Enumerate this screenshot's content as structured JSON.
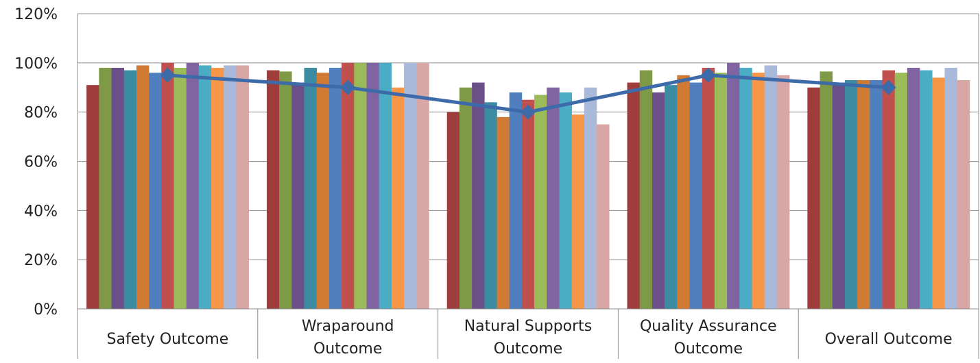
{
  "chart_data": {
    "type": "bar",
    "title": "",
    "xlabel": "",
    "ylabel": "",
    "ylim": [
      0,
      1.2
    ],
    "yticks": [
      "0%",
      "20%",
      "40%",
      "60%",
      "80%",
      "100%",
      "120%"
    ],
    "grid": true,
    "legend": "none",
    "categories": [
      [
        "Safety Outcome"
      ],
      [
        "Wraparound",
        "Outcome"
      ],
      [
        "Natural Supports",
        "Outcome"
      ],
      [
        "Quality Assurance",
        "Outcome"
      ],
      [
        "Overall Outcome"
      ]
    ],
    "bar_colors": [
      "#9E3D3B",
      "#7E9A47",
      "#6B4F88",
      "#3B8CA3",
      "#D07A33",
      "#4F7FBE",
      "#C0504D",
      "#9BBB59",
      "#8064A2",
      "#4BACC6",
      "#F79646",
      "#A9B9D9",
      "#D9A6A6"
    ],
    "bar_values": [
      [
        0.91,
        0.98,
        0.98,
        0.97,
        0.99,
        0.96,
        1.0,
        0.98,
        1.0,
        0.99,
        0.98,
        0.99,
        0.99
      ],
      [
        0.97,
        0.965,
        0.92,
        0.98,
        0.96,
        0.98,
        1.0,
        1.0,
        1.0,
        1.0,
        0.9,
        1.0,
        1.0
      ],
      [
        0.8,
        0.9,
        0.92,
        0.84,
        0.78,
        0.88,
        0.85,
        0.87,
        0.9,
        0.88,
        0.79,
        0.9,
        0.75
      ],
      [
        0.92,
        0.97,
        0.88,
        0.91,
        0.95,
        0.92,
        0.98,
        0.96,
        1.0,
        0.98,
        0.96,
        0.99,
        0.95
      ],
      [
        0.9,
        0.965,
        0.92,
        0.93,
        0.93,
        0.93,
        0.97,
        0.96,
        0.98,
        0.97,
        0.94,
        0.98,
        0.93
      ]
    ],
    "line_values": [
      0.95,
      0.9,
      0.8,
      0.95,
      0.9
    ],
    "line_color": "#3D6AA8"
  }
}
